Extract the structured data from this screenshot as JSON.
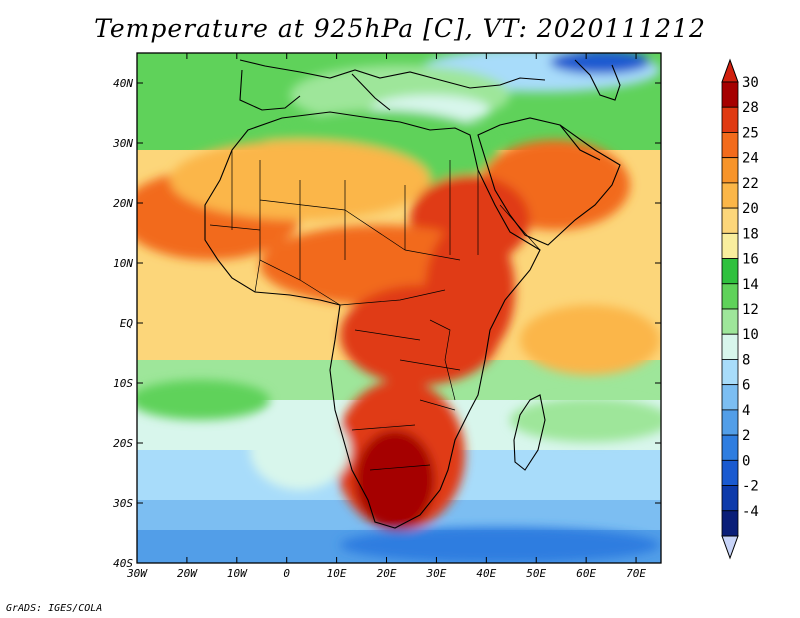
{
  "title": "Temperature at 925hPa [C], VT: 2020111212",
  "credit": "GrADS: IGES/COLA",
  "map": {
    "variable": "Temperature",
    "level": "925hPa",
    "units": "C",
    "valid_time": "2020111212",
    "lon_range": [
      -30,
      75
    ],
    "lat_range": [
      -40,
      45
    ],
    "lon_ticks": [
      {
        "lon": -30,
        "label": "30W"
      },
      {
        "lon": -20,
        "label": "20W"
      },
      {
        "lon": -10,
        "label": "10W"
      },
      {
        "lon": 0,
        "label": "0"
      },
      {
        "lon": 10,
        "label": "10E"
      },
      {
        "lon": 20,
        "label": "20E"
      },
      {
        "lon": 30,
        "label": "30E"
      },
      {
        "lon": 40,
        "label": "40E"
      },
      {
        "lon": 50,
        "label": "50E"
      },
      {
        "lon": 60,
        "label": "60E"
      },
      {
        "lon": 70,
        "label": "70E"
      }
    ],
    "lat_ticks": [
      {
        "lat": 40,
        "label": "40N"
      },
      {
        "lat": 30,
        "label": "30N"
      },
      {
        "lat": 20,
        "label": "20N"
      },
      {
        "lat": 10,
        "label": "10N"
      },
      {
        "lat": 0,
        "label": "EQ"
      },
      {
        "lat": -10,
        "label": "10S"
      },
      {
        "lat": -20,
        "label": "20S"
      },
      {
        "lat": -30,
        "label": "30S"
      },
      {
        "lat": -40,
        "label": "40S"
      }
    ]
  },
  "colorbar": {
    "levels": [
      {
        "label": "30",
        "color": "#a50000"
      },
      {
        "label": "28",
        "color": "#e03a12"
      },
      {
        "label": "25",
        "color": "#f26b1c"
      },
      {
        "label": "24",
        "color": "#f7942a"
      },
      {
        "label": "22",
        "color": "#fbb648"
      },
      {
        "label": "20",
        "color": "#fcd67a"
      },
      {
        "label": "18",
        "color": "#f9ee9e"
      },
      {
        "label": "16",
        "color": "#2fc13e"
      },
      {
        "label": "14",
        "color": "#5fd25a"
      },
      {
        "label": "12",
        "color": "#9ee69a"
      },
      {
        "label": "10",
        "color": "#d8f6ec"
      },
      {
        "label": "8",
        "color": "#a8dcfa"
      },
      {
        "label": "6",
        "color": "#7cbef2"
      },
      {
        "label": "4",
        "color": "#529ee8"
      },
      {
        "label": "2",
        "color": "#2e7de0"
      },
      {
        "label": "0",
        "color": "#1a5ad0"
      },
      {
        "label": "-2",
        "color": "#0d3aaa"
      },
      {
        "label": "-4",
        "color": "#0a1e78"
      }
    ],
    "over_color": "#d1200e",
    "under_color": "#c8d4f8"
  }
}
